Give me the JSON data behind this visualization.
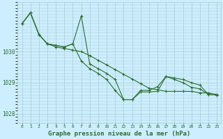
{
  "background_color": "#cceeff",
  "grid_color": "#aacccc",
  "line_color": "#2d6e2d",
  "title": "Graphe pression niveau de la mer (hPa)",
  "title_fontsize": 6.5,
  "x_ticks": [
    0,
    1,
    2,
    3,
    4,
    5,
    6,
    7,
    8,
    9,
    10,
    11,
    12,
    13,
    14,
    15,
    16,
    17,
    18,
    19,
    20,
    21,
    22,
    23
  ],
  "ylim": [
    1027.7,
    1031.6
  ],
  "yticks": [
    1028,
    1029,
    1030
  ],
  "series1_x": [
    0,
    1,
    2,
    3,
    4,
    5,
    6,
    7,
    8,
    9,
    10,
    11,
    12,
    13,
    14,
    15,
    16,
    17,
    18,
    19,
    20,
    21,
    22,
    23
  ],
  "series1_y": [
    1030.9,
    1031.25,
    1030.55,
    1030.25,
    1030.15,
    1030.1,
    1030.05,
    1030.0,
    1029.87,
    1029.72,
    1029.57,
    1029.42,
    1029.27,
    1029.12,
    1028.97,
    1028.82,
    1028.77,
    1028.72,
    1028.72,
    1028.72,
    1028.72,
    1028.67,
    1028.67,
    1028.62
  ],
  "series2_x": [
    0,
    1,
    2,
    3,
    4,
    5,
    6,
    7,
    8,
    9,
    10,
    11,
    12,
    13,
    14,
    15,
    16,
    17,
    18,
    19,
    20,
    21,
    22,
    23
  ],
  "series2_y": [
    1030.9,
    1031.25,
    1030.55,
    1030.25,
    1030.2,
    1030.15,
    1030.25,
    1031.15,
    1029.6,
    1029.45,
    1029.3,
    1029.1,
    1028.45,
    1028.45,
    1028.75,
    1028.75,
    1028.87,
    1029.2,
    1029.15,
    1029.1,
    1029.0,
    1028.92,
    1028.62,
    1028.6
  ],
  "series3_x": [
    0,
    1,
    2,
    3,
    4,
    5,
    6,
    7,
    8,
    9,
    10,
    11,
    12,
    13,
    14,
    15,
    16,
    17,
    18,
    19,
    20,
    21,
    22,
    23
  ],
  "series3_y": [
    1030.9,
    1031.25,
    1030.55,
    1030.25,
    1030.2,
    1030.15,
    1030.25,
    1029.7,
    1029.45,
    1029.3,
    1029.1,
    1028.75,
    1028.45,
    1028.45,
    1028.7,
    1028.7,
    1028.72,
    1029.2,
    1029.1,
    1029.0,
    1028.85,
    1028.8,
    1028.62,
    1028.6
  ]
}
